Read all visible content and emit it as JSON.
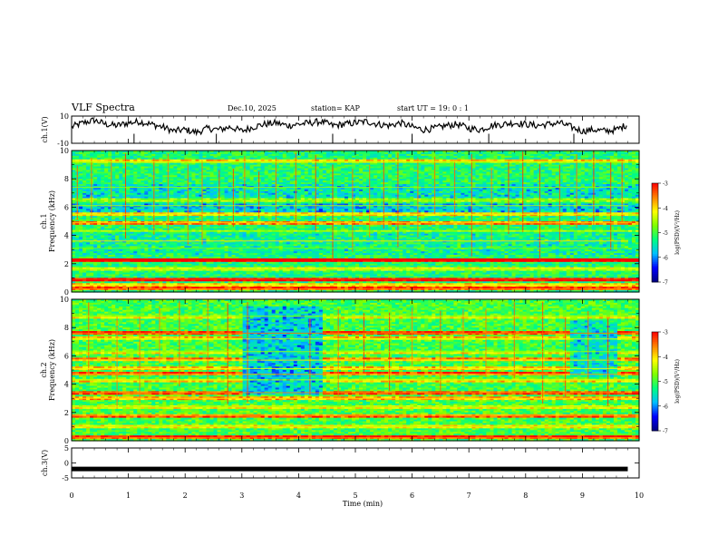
{
  "header": {
    "title": "VLF Spectra",
    "date": "Dec.10, 2025",
    "station": "station= KAP",
    "start": "start  UT =  19: 0  : 1"
  },
  "colors": {
    "trace": "#000000",
    "colormap": [
      "#00007f",
      "#0000ff",
      "#00bfff",
      "#00ff80",
      "#7fff00",
      "#ffff00",
      "#ff8000",
      "#ff0000",
      "#ffffff"
    ]
  },
  "chart_data": [
    {
      "type": "line",
      "name": "ch1-waveform",
      "ylabel": "ch.1(V)",
      "ylim": [
        -10,
        10
      ],
      "ytick_labels": [
        "10",
        "-10"
      ],
      "x": [
        0,
        0.2,
        0.4,
        0.6,
        0.8,
        1.0,
        1.2,
        1.4,
        1.6,
        1.8,
        2.0,
        2.2,
        2.4,
        2.6,
        2.8,
        3.0,
        3.2,
        3.4,
        3.6,
        3.8,
        4.0,
        4.2,
        4.4,
        4.6,
        4.8,
        5.0,
        5.2,
        5.4,
        5.6,
        5.8,
        6.0,
        6.2,
        6.4,
        6.6,
        6.8,
        7.0,
        7.2,
        7.4,
        7.6,
        7.8,
        8.0,
        8.2,
        8.4,
        8.6,
        8.8,
        9.0,
        9.2,
        9.4,
        9.6,
        9.8
      ],
      "y": [
        2,
        5,
        7,
        4,
        3,
        5,
        6,
        4,
        2,
        -1,
        0,
        -2,
        1,
        0,
        2,
        -1,
        2,
        4,
        5,
        3,
        4,
        5,
        6,
        3,
        4,
        5,
        6,
        4,
        3,
        5,
        2,
        0,
        1,
        3,
        4,
        1,
        0,
        3,
        4,
        5,
        4,
        3,
        4,
        5,
        2,
        -1,
        0,
        -1,
        0,
        4
      ]
    },
    {
      "type": "heatmap",
      "name": "ch1-spectrogram",
      "ylabel": "ch.1\nFrequency (kHz)",
      "ylim": [
        0,
        10
      ],
      "ytick_labels": [
        "0",
        "2",
        "4",
        "6",
        "8",
        "10"
      ],
      "colorbar": {
        "label": "log(PSD)(V²/Hz)",
        "range": [
          -7,
          -3
        ],
        "tick_labels": [
          "-3",
          "-4",
          "-5",
          "-6",
          "-7"
        ]
      },
      "background_level": -5.2,
      "bands": [
        {
          "f": 0.2,
          "level": -3.6
        },
        {
          "f": 0.5,
          "level": -4.2
        },
        {
          "f": 0.9,
          "level": -3.2
        },
        {
          "f": 1.6,
          "level": -4.6
        },
        {
          "f": 2.2,
          "level": -3.0
        },
        {
          "f": 3.1,
          "level": -4.8
        },
        {
          "f": 3.6,
          "level": -4.0
        },
        {
          "f": 4.3,
          "level": -4.6
        },
        {
          "f": 4.9,
          "level": -3.9
        },
        {
          "f": 5.5,
          "level": -4.3
        },
        {
          "f": 6.1,
          "level": -4.5
        },
        {
          "f": 6.5,
          "level": -4.8
        },
        {
          "f": 7.4,
          "level": -4.6
        },
        {
          "f": 9.2,
          "level": -4.4
        }
      ],
      "quiet_regions": [
        {
          "f0": 5.6,
          "f1": 6.2,
          "level": -6.0
        },
        {
          "f0": 6.6,
          "f1": 7.6,
          "level": -5.8
        },
        {
          "f0": 2.6,
          "f1": 4.2,
          "level": -5.6
        }
      ],
      "spheric_times": [
        0.1,
        0.35,
        0.7,
        0.95,
        1.45,
        1.7,
        2.05,
        2.3,
        2.6,
        2.85,
        3.05,
        3.3,
        3.6,
        3.95,
        4.3,
        4.6,
        4.95,
        5.25,
        5.5,
        5.75,
        6.1,
        6.4,
        6.75,
        7.05,
        7.4,
        7.7,
        7.95,
        8.25,
        8.6,
        8.9,
        9.2,
        9.5,
        9.7
      ]
    },
    {
      "type": "heatmap",
      "name": "ch2-spectrogram",
      "ylabel": "ch.2\nFrequency (kHz)",
      "ylim": [
        0,
        10
      ],
      "ytick_labels": [
        "0",
        "2",
        "4",
        "6",
        "8",
        "10"
      ],
      "colorbar": {
        "label": "log(PSD)(V²/Hz)",
        "range": [
          -7,
          -3
        ],
        "tick_labels": [
          "-3",
          "-4",
          "-5",
          "-6",
          "-7"
        ]
      },
      "background_level": -5.0,
      "bands": [
        {
          "f": 0.2,
          "level": -3.5
        },
        {
          "f": 1.0,
          "level": -4.4
        },
        {
          "f": 1.8,
          "level": -3.8
        },
        {
          "f": 2.4,
          "level": -4.5
        },
        {
          "f": 3.0,
          "level": -4.0
        },
        {
          "f": 3.4,
          "level": -3.6
        },
        {
          "f": 4.3,
          "level": -4.4
        },
        {
          "f": 4.7,
          "level": -3.7
        },
        {
          "f": 5.1,
          "level": -4.2
        },
        {
          "f": 5.7,
          "level": -4.0
        },
        {
          "f": 6.3,
          "level": -4.6
        },
        {
          "f": 7.2,
          "level": -4.3
        },
        {
          "f": 7.6,
          "level": -3.5
        },
        {
          "f": 8.8,
          "level": -4.6
        }
      ],
      "quiet_regions": [
        {
          "f0": 3.3,
          "f1": 9.5,
          "t0": 3.0,
          "t1": 4.4,
          "level": -6.0
        },
        {
          "f0": 4.5,
          "f1": 8.5,
          "t0": 8.8,
          "t1": 9.6,
          "level": -5.8
        }
      ],
      "spheric_times": [
        0.3,
        0.8,
        1.2,
        1.55,
        1.9,
        2.4,
        2.75,
        3.1,
        4.2,
        4.7,
        5.15,
        5.6,
        6.0,
        6.5,
        6.9,
        7.3,
        7.8,
        8.3,
        8.7,
        9.1,
        9.45
      ]
    },
    {
      "type": "line",
      "name": "ch3-waveform",
      "ylabel": "ch.3(V)",
      "ylim": [
        -5,
        5
      ],
      "ytick_labels": [
        "5",
        "0",
        "-5"
      ],
      "x": [
        0,
        9.8
      ],
      "y": [
        -2,
        -2
      ],
      "xlabel": "Time  (min)",
      "xlim": [
        0,
        10
      ],
      "xtick_labels": [
        "0",
        "1",
        "2",
        "3",
        "4",
        "5",
        "6",
        "7",
        "8",
        "9",
        "10"
      ]
    }
  ]
}
